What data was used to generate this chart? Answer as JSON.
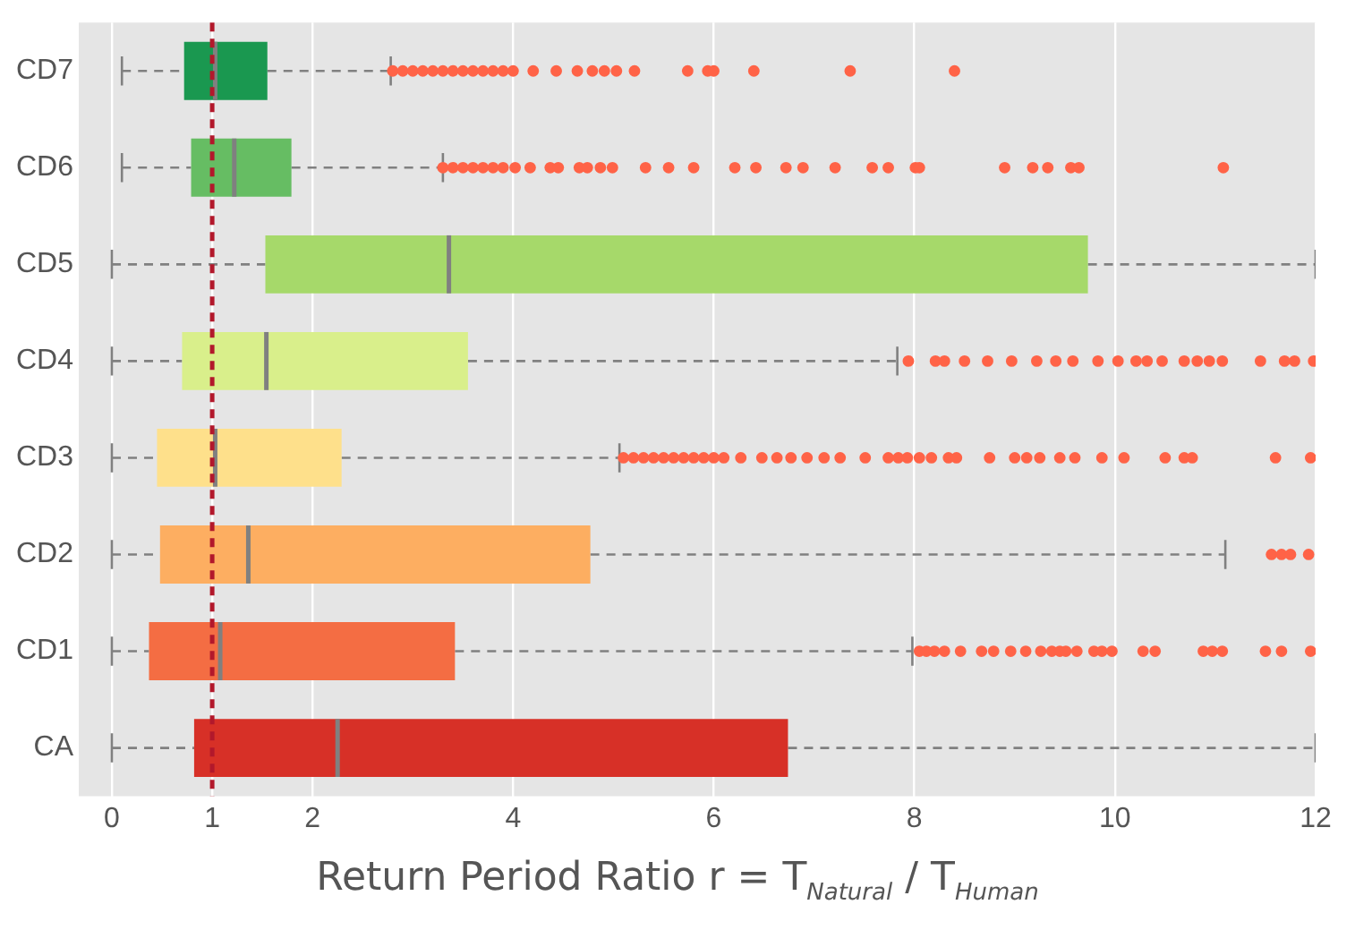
{
  "chart_data": {
    "type": "box",
    "orientation": "horizontal",
    "xlabel": "Return Period Ratio  r = T$_{Natural}$ / T$_{Human}$",
    "categories": [
      "CD7",
      "CD6",
      "CD5",
      "CD4",
      "CD3",
      "CD2",
      "CD1",
      "CA"
    ],
    "colors": [
      "#1a9850",
      "#66bd63",
      "#a6d96a",
      "#d9ef8b",
      "#fee08b",
      "#fdae61",
      "#f46d43",
      "#d73027"
    ],
    "boxes": [
      {
        "low": 0.1,
        "q1": 0.72,
        "median": 1.03,
        "q3": 1.55,
        "high": 2.78,
        "outliers": [
          2.8,
          2.9,
          3.0,
          3.1,
          3.2,
          3.3,
          3.4,
          3.5,
          3.6,
          3.7,
          3.8,
          3.9,
          4.0,
          4.2,
          4.43,
          4.64,
          4.79,
          4.91,
          5.03,
          5.21,
          5.74,
          5.94,
          6.0,
          6.4,
          7.36,
          8.4
        ]
      },
      {
        "low": 0.1,
        "q1": 0.79,
        "median": 1.22,
        "q3": 1.79,
        "high": 3.3,
        "outliers": [
          3.3,
          3.4,
          3.5,
          3.6,
          3.7,
          3.8,
          3.9,
          4.02,
          4.17,
          4.37,
          4.45,
          4.66,
          4.74,
          4.87,
          4.99,
          5.32,
          5.55,
          5.8,
          6.21,
          6.42,
          6.72,
          6.89,
          7.21,
          7.58,
          7.74,
          8.01,
          8.05,
          8.9,
          9.18,
          9.33,
          9.56,
          9.64,
          11.08
        ]
      },
      {
        "low": 0,
        "q1": 1.53,
        "median": 3.36,
        "q3": 9.73,
        "high": 12
      },
      {
        "low": 0,
        "q1": 0.7,
        "median": 1.54,
        "q3": 3.55,
        "high": 7.83,
        "outliers": [
          7.94,
          8.21,
          8.3,
          8.5,
          8.73,
          8.97,
          9.22,
          9.41,
          9.58,
          9.83,
          10.03,
          10.21,
          10.32,
          10.47,
          10.69,
          10.82,
          10.94,
          11.07,
          11.45,
          11.69,
          11.79,
          11.98
        ]
      },
      {
        "low": 0,
        "q1": 0.45,
        "median": 1.03,
        "q3": 2.29,
        "high": 5.06,
        "outliers": [
          5.1,
          5.2,
          5.3,
          5.4,
          5.5,
          5.6,
          5.7,
          5.8,
          5.9,
          6.0,
          6.1,
          6.27,
          6.48,
          6.63,
          6.77,
          6.93,
          7.1,
          7.26,
          7.51,
          7.74,
          7.84,
          7.93,
          8.05,
          8.17,
          8.34,
          8.42,
          8.75,
          9.0,
          9.12,
          9.25,
          9.45,
          9.6,
          9.87,
          10.09,
          10.5,
          10.69,
          10.77,
          11.6,
          11.95
        ]
      },
      {
        "low": 0,
        "q1": 0.48,
        "median": 1.36,
        "q3": 4.77,
        "high": 11.1,
        "outliers": [
          11.56,
          11.66,
          11.75,
          11.93
        ]
      },
      {
        "low": 0,
        "q1": 0.37,
        "median": 1.08,
        "q3": 3.42,
        "high": 7.98,
        "outliers": [
          8.05,
          8.12,
          8.2,
          8.3,
          8.46,
          8.67,
          8.79,
          8.96,
          9.11,
          9.26,
          9.37,
          9.45,
          9.51,
          9.62,
          9.79,
          9.87,
          9.97,
          10.28,
          10.4,
          10.88,
          10.97,
          11.07,
          11.5,
          11.66,
          11.95
        ]
      },
      {
        "low": 0,
        "q1": 0.82,
        "median": 2.25,
        "q3": 6.74,
        "high": 12
      }
    ],
    "xlim": [
      -0.33,
      12
    ],
    "xticks": [
      0,
      1,
      2,
      4,
      6,
      8,
      10,
      12
    ],
    "grid": "x",
    "ref_lines": [
      {
        "axis": "x",
        "value": 1,
        "color": "#b2182b",
        "line_style": "dashed"
      }
    ]
  }
}
